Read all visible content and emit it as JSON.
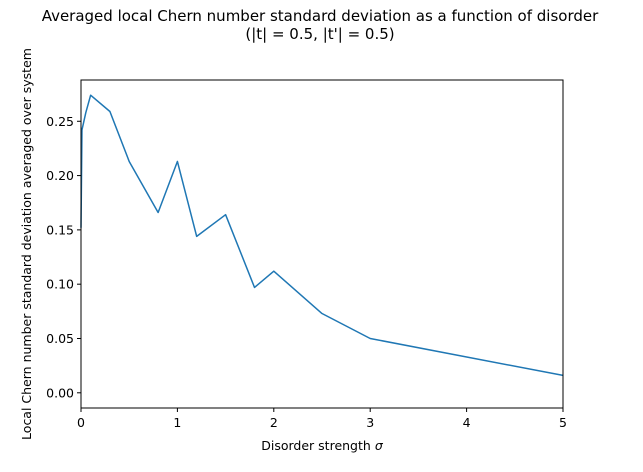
{
  "chart_data": {
    "type": "line",
    "title": "Averaged local Chern number standard deviation as a function of disorder",
    "subtitle": "(|t| = 0.5, |t'| = 0.5)",
    "xlabel": "Disorder strength",
    "xlabel_symbol": "σ",
    "ylabel": "Local Chern number standard deviation averaged over system",
    "xlim": [
      0,
      5
    ],
    "ylim": [
      -0.014,
      0.288
    ],
    "x_ticks": [
      0,
      1,
      2,
      3,
      4,
      5
    ],
    "x_tick_labels": [
      "0",
      "1",
      "2",
      "3",
      "4",
      "5"
    ],
    "y_ticks": [
      0.0,
      0.05,
      0.1,
      0.15,
      0.2,
      0.25
    ],
    "y_tick_labels": [
      "0.00",
      "0.05",
      "0.10",
      "0.15",
      "0.20",
      "0.25"
    ],
    "grid": false,
    "series": [
      {
        "color": "#1f77b4",
        "x": [
          0.0,
          0.01,
          0.05,
          0.1,
          0.3,
          0.5,
          0.8,
          1.0,
          1.2,
          1.5,
          1.8,
          2.0,
          2.5,
          3.0,
          5.0
        ],
        "y": [
          0.152,
          0.242,
          0.258,
          0.274,
          0.259,
          0.213,
          0.166,
          0.213,
          0.144,
          0.164,
          0.097,
          0.112,
          0.073,
          0.05,
          0.016
        ]
      }
    ]
  }
}
